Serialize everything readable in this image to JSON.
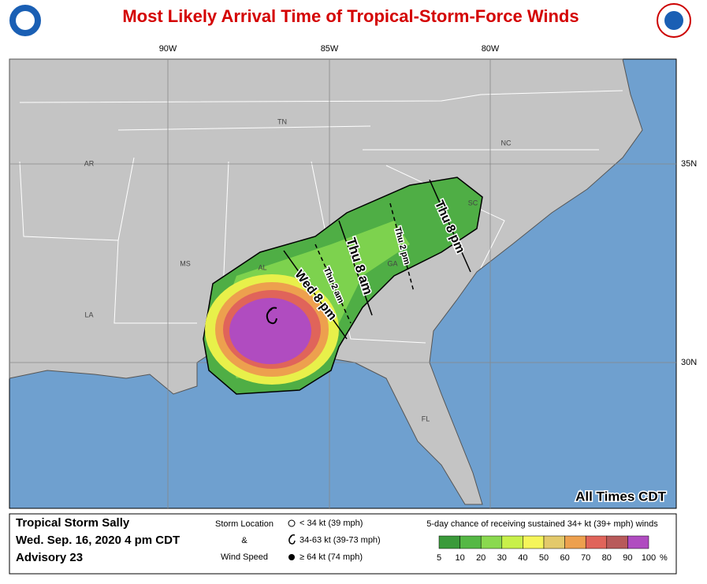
{
  "header": {
    "title": "Most Likely Arrival Time of Tropical-Storm-Force Winds"
  },
  "map": {
    "longitudes": [
      "90W",
      "85W",
      "80W"
    ],
    "latitudes": [
      "35N",
      "30N"
    ],
    "states": [
      "TN",
      "NC",
      "AR",
      "SC",
      "MS",
      "AL",
      "GA",
      "LA",
      "FL"
    ],
    "arrival_times": [
      "Wed 8 pm",
      "Thu 2 am",
      "Thu 8 am",
      "Thu 2 pm",
      "Thu 8 pm"
    ],
    "note": "All Times CDT"
  },
  "footer": {
    "storm": [
      "Tropical Storm Sally",
      "Wed. Sep. 16, 2020  4 pm CDT",
      "Advisory 23"
    ],
    "symbol_legend": {
      "title_lines": [
        "Storm Location",
        "&",
        "Wind Speed"
      ],
      "items": [
        "< 34 kt (39 mph)",
        "34-63 kt (39-73 mph)",
        "≥ 64 kt (74 mph)"
      ]
    },
    "scale": {
      "title": "5-day chance of receiving sustained 34+ kt (39+ mph) winds",
      "ticks": [
        5,
        10,
        20,
        30,
        40,
        50,
        60,
        70,
        80,
        90,
        100
      ],
      "unit": "%",
      "colors": [
        "#3a9a3a",
        "#55b845",
        "#8ad94f",
        "#c8f04a",
        "#f5f55a",
        "#e3c96b",
        "#eda04e",
        "#e0645a",
        "#b85a5a",
        "#b04cc0"
      ]
    }
  }
}
